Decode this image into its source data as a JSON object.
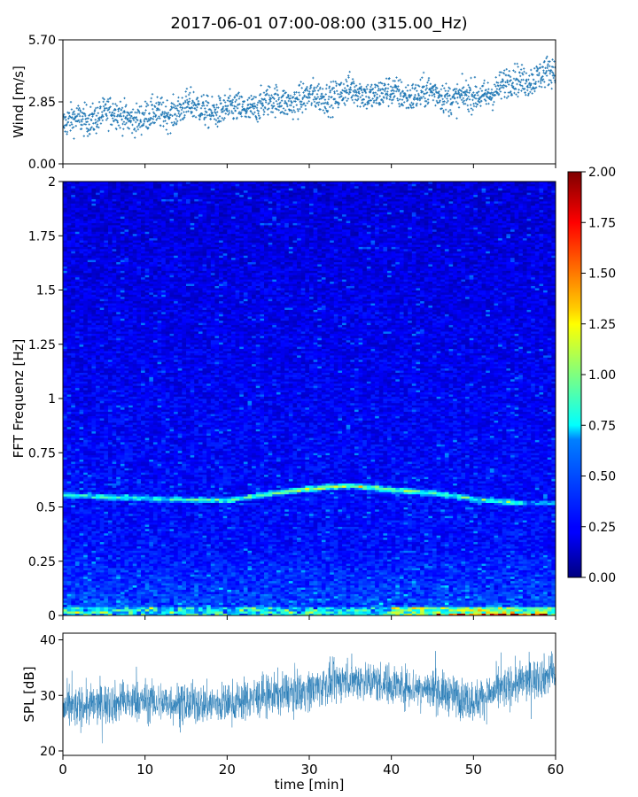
{
  "title": "2017-06-01 07:00-08:00 (315.00_Hz)",
  "chart_data": [
    {
      "type": "scatter",
      "name": "wind-panel",
      "ylabel": "Wind [m/s]",
      "xlim": [
        0,
        60
      ],
      "ylim": [
        0,
        5.7
      ],
      "yticks": [
        "0.00",
        "2.85",
        "5.70"
      ],
      "ytick_values": [
        0,
        2.85,
        5.7
      ],
      "xticks": [
        0,
        10,
        20,
        30,
        40,
        50,
        60
      ],
      "color": "#1f77b4",
      "trend": [
        {
          "x": 0,
          "y": 1.8
        },
        {
          "x": 5,
          "y": 2.3
        },
        {
          "x": 10,
          "y": 2.1
        },
        {
          "x": 15,
          "y": 2.6
        },
        {
          "x": 20,
          "y": 2.4
        },
        {
          "x": 25,
          "y": 2.8
        },
        {
          "x": 30,
          "y": 3.0
        },
        {
          "x": 35,
          "y": 3.3
        },
        {
          "x": 40,
          "y": 3.2
        },
        {
          "x": 45,
          "y": 3.2
        },
        {
          "x": 50,
          "y": 3.0
        },
        {
          "x": 55,
          "y": 3.8
        },
        {
          "x": 60,
          "y": 4.2
        }
      ]
    },
    {
      "type": "heatmap",
      "name": "fft-spectrogram",
      "ylabel": "FFT Frequenz [Hz]",
      "xlim": [
        0,
        60
      ],
      "ylim": [
        0,
        2
      ],
      "yticks": [
        "0",
        "0.25",
        "0.5",
        "0.75",
        "1",
        "1.25",
        "1.5",
        "1.75",
        "2"
      ],
      "ytick_values": [
        0,
        0.25,
        0.5,
        0.75,
        1,
        1.25,
        1.5,
        1.75,
        2
      ],
      "xticks": [
        0,
        10,
        20,
        30,
        40,
        50,
        60
      ],
      "colormap": "jet",
      "color_range": [
        0,
        2
      ],
      "colorbar_ticks": [
        "0.00",
        "0.25",
        "0.50",
        "0.75",
        "1.00",
        "1.25",
        "1.50",
        "1.75",
        "2.00"
      ],
      "colorbar_tick_values": [
        0,
        0.25,
        0.5,
        0.75,
        1,
        1.25,
        1.5,
        1.75,
        2
      ],
      "peak_line": [
        {
          "t": 0,
          "f": 0.555
        },
        {
          "t": 10,
          "f": 0.54
        },
        {
          "t": 20,
          "f": 0.53
        },
        {
          "t": 25,
          "f": 0.56
        },
        {
          "t": 30,
          "f": 0.585
        },
        {
          "t": 35,
          "f": 0.6
        },
        {
          "t": 40,
          "f": 0.58
        },
        {
          "t": 45,
          "f": 0.565
        },
        {
          "t": 50,
          "f": 0.54
        },
        {
          "t": 55,
          "f": 0.52
        }
      ]
    },
    {
      "type": "line",
      "name": "spl-panel",
      "ylabel": "SPL [dB]",
      "xlabel": "time [min]",
      "xlim": [
        0,
        60
      ],
      "ylim": [
        19.2,
        41.2
      ],
      "yticks": [
        "20",
        "30",
        "40"
      ],
      "ytick_values": [
        20,
        30,
        40
      ],
      "xticks": [
        0,
        10,
        20,
        30,
        40,
        50,
        60
      ],
      "color": "#1f77b4",
      "trend": [
        {
          "x": 0,
          "y": 27.5
        },
        {
          "x": 5,
          "y": 28.5
        },
        {
          "x": 10,
          "y": 29.0
        },
        {
          "x": 15,
          "y": 28.5
        },
        {
          "x": 20,
          "y": 28.5
        },
        {
          "x": 25,
          "y": 30.0
        },
        {
          "x": 30,
          "y": 31.0
        },
        {
          "x": 35,
          "y": 33.0
        },
        {
          "x": 40,
          "y": 32.0
        },
        {
          "x": 45,
          "y": 31.0
        },
        {
          "x": 50,
          "y": 29.0
        },
        {
          "x": 55,
          "y": 32.0
        },
        {
          "x": 60,
          "y": 34.0
        }
      ]
    }
  ]
}
